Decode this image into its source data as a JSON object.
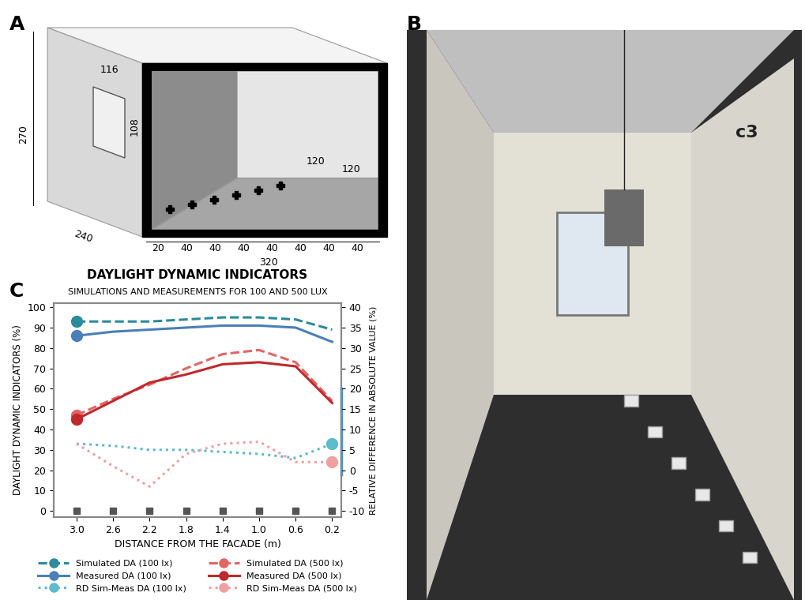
{
  "panel_labels": [
    "A",
    "B",
    "C"
  ],
  "room_diagram": {
    "height": "270",
    "window_width": "116",
    "window_height": "108",
    "width": "240",
    "sensor_offsets": [
      "120",
      "120"
    ],
    "depth_segments": [
      "20",
      "40",
      "40",
      "40",
      "40",
      "40",
      "40",
      "40"
    ],
    "depth_total": "320"
  },
  "photo": {
    "wall_label": "c3"
  },
  "chart_data": {
    "type": "line",
    "title": "DAYLIGHT DYNAMIC INDICATORS",
    "subtitle": "SIMULATIONS AND MEASUREMENTS FOR 100 AND 500 LUX",
    "x_label": "DISTANCE FROM THE FACADE (m)",
    "y_label": "DAYLIGHT DYNAMIC INDICATORS (%)",
    "y2_label": "RELATIVE DIFFERENCE IN ABSOLUTE VALUE (%)",
    "x": [
      3.0,
      2.6,
      2.2,
      1.8,
      1.4,
      1.0,
      0.6,
      0.2
    ],
    "xlim": [
      3.25,
      0.1
    ],
    "xticks": [
      3.0,
      2.6,
      2.2,
      1.8,
      1.4,
      1.0,
      0.6,
      0.2
    ],
    "ylim": [
      -3,
      102
    ],
    "yticks": [
      0,
      10,
      20,
      30,
      40,
      50,
      60,
      70,
      80,
      90,
      100
    ],
    "y2lim": [
      -11.5,
      41
    ],
    "y2ticks": [
      -10,
      -5,
      0,
      5,
      10,
      15,
      20,
      25,
      30,
      35,
      40
    ],
    "legend": "lower center",
    "series": [
      {
        "name": "Simulated DA (100 lx)",
        "color": "#2b8a9c",
        "line_style": "dashed",
        "marker": "o",
        "values": [
          93,
          93,
          93,
          94,
          95,
          95,
          94,
          89
        ]
      },
      {
        "name": "Measured DA (100 lx)",
        "color": "#4a7fb8",
        "line_style": "solid",
        "marker": "o",
        "values": [
          86,
          88,
          89,
          90,
          91,
          91,
          90,
          83
        ]
      },
      {
        "name": "RD Sim-Meas DA (100 lx)",
        "color": "#5bbccc",
        "line_style": "dotted",
        "marker": "o",
        "axis": "y2",
        "values": [
          6.5,
          6,
          5,
          5,
          4.5,
          4,
          3,
          6.5
        ]
      },
      {
        "name": "Simulated DA (500 lx)",
        "color": "#e46464",
        "line_style": "dashed",
        "marker": "o",
        "values": [
          47,
          55,
          62,
          70,
          77,
          79,
          73,
          54
        ]
      },
      {
        "name": "Measured DA (500 lx)",
        "color": "#c0282b",
        "line_style": "solid",
        "marker": "o",
        "values": [
          45,
          54,
          63,
          67,
          72,
          73,
          71,
          53
        ]
      },
      {
        "name": "RD Sim-Meas DA (500 lx)",
        "color": "#f0a0a0",
        "line_style": "dotted",
        "marker": "o",
        "axis": "y2",
        "values": [
          6.5,
          1,
          -4,
          4,
          6.5,
          7,
          2,
          2
        ]
      }
    ]
  }
}
